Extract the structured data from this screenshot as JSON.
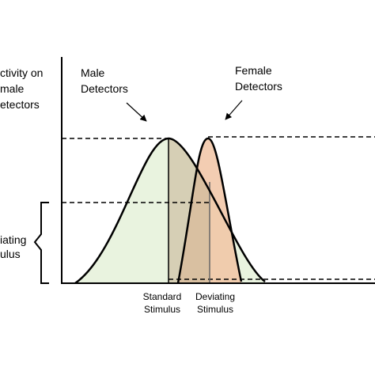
{
  "y_axis_label": [
    "ctivity on",
    "male",
    "etectors"
  ],
  "brace_label": [
    "iating",
    "ulus"
  ],
  "male_label": [
    "Male",
    "Detectors"
  ],
  "female_label": [
    "Female",
    "Detectors"
  ],
  "standard_label": [
    "Standard",
    "Stimulus"
  ],
  "deviating_label": [
    "Deviating",
    "Stimulus"
  ]
}
